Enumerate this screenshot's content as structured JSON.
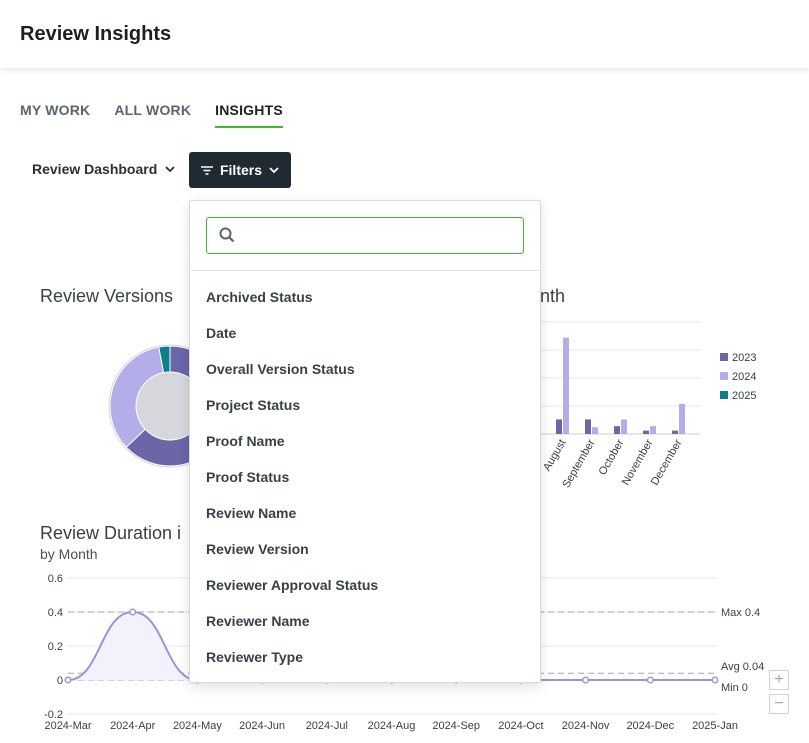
{
  "header": {
    "title": "Review Insights"
  },
  "tabs": [
    {
      "label": "MY WORK"
    },
    {
      "label": "ALL WORK"
    },
    {
      "label": "INSIGHTS"
    }
  ],
  "toolbar": {
    "dashboard_label": "Review Dashboard",
    "filters_label": "Filters"
  },
  "filters_menu": {
    "search_value": "",
    "search_placeholder": "",
    "items": [
      "Archived Status",
      "Date",
      "Overall Version Status",
      "Project Status",
      "Proof Name",
      "Proof Status",
      "Review Name",
      "Review Version",
      "Reviewer Approval Status",
      "Reviewer Name",
      "Reviewer Type"
    ]
  },
  "colors": {
    "accent": "#3fba2b",
    "dark_button": "#1f2a33",
    "series_2023": "#6a66a8",
    "series_2024": "#b3aeea",
    "series_2025": "#0d7f8c",
    "line": "#9b93d8"
  },
  "chart_data": [
    {
      "type": "pie",
      "title": "Review Versions",
      "categories": [
        "2023",
        "2024",
        "2025"
      ],
      "values": [
        0.63,
        0.34,
        0.03
      ]
    },
    {
      "type": "bar",
      "title": "onth",
      "categories": [
        "August",
        "September",
        "October",
        "November",
        "December"
      ],
      "ylim": [
        0,
        1
      ],
      "legend": "right",
      "grid": true,
      "series": [
        {
          "name": "2023",
          "values": [
            0.13,
            0.13,
            0.07,
            0.03,
            0.03
          ]
        },
        {
          "name": "2024",
          "values": [
            0.86,
            0.06,
            0.13,
            0.07,
            0.27
          ]
        },
        {
          "name": "2025",
          "values": [
            0,
            0,
            0,
            0,
            0
          ]
        }
      ]
    },
    {
      "type": "line",
      "title": "Review Duration i",
      "subtitle": "by Month",
      "categories": [
        "2024-Mar",
        "2024-Apr",
        "2024-May",
        "2024-Jun",
        "2024-Jul",
        "2024-Aug",
        "2024-Sep",
        "2024-Oct",
        "2024-Nov",
        "2024-Dec",
        "2025-Jan"
      ],
      "values": [
        0,
        0.4,
        0,
        0,
        0,
        0,
        0,
        0,
        0,
        0,
        0
      ],
      "yticks": [
        "0.6",
        "0.4",
        "0.2",
        "0",
        "-0.2"
      ],
      "ylim": [
        -0.2,
        0.6
      ],
      "grid": true,
      "reference_lines": [
        {
          "label": "Max 0.4",
          "value": 0.4
        },
        {
          "label": "Avg 0.04",
          "value": 0.04
        },
        {
          "label": "Min 0",
          "value": 0
        }
      ]
    }
  ]
}
